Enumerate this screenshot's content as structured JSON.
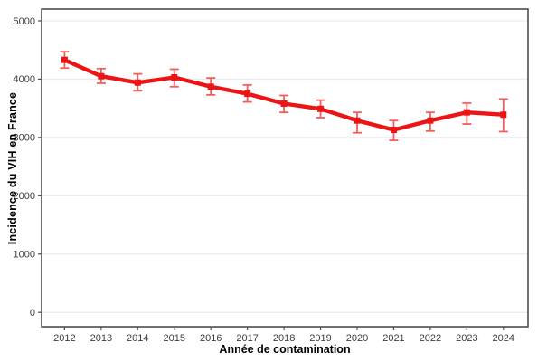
{
  "chart_data": {
    "type": "line",
    "title": "",
    "xlabel": "Année de contamination",
    "ylabel": "Incidence du VIH en France",
    "x": [
      2012,
      2013,
      2014,
      2015,
      2016,
      2017,
      2018,
      2019,
      2020,
      2021,
      2022,
      2023,
      2024
    ],
    "series": [
      {
        "name": "Incidence du VIH",
        "values": [
          4330,
          4050,
          3940,
          4030,
          3870,
          3750,
          3580,
          3490,
          3290,
          3130,
          3290,
          3430,
          3390
        ],
        "lower": [
          4190,
          3930,
          3800,
          3870,
          3730,
          3610,
          3430,
          3340,
          3080,
          2950,
          3110,
          3230,
          3100
        ],
        "upper": [
          4470,
          4180,
          4090,
          4170,
          4020,
          3900,
          3720,
          3640,
          3430,
          3290,
          3430,
          3590,
          3660
        ]
      }
    ],
    "ylim": [
      0,
      5000
    ],
    "yticks": [
      0,
      1000,
      2000,
      3000,
      4000,
      5000
    ],
    "grid": "horizontal-major-only",
    "legend": "none",
    "error_bars": true,
    "style": {
      "line_color": "#ec1414",
      "errorbar_color": "#f25e5a",
      "grid_color": "#ececec",
      "panel_border_color": "#4d4d4d",
      "tick_label_color": "#3d3d3d",
      "axis_title_color": "#000000",
      "background": "#ffffff"
    }
  }
}
